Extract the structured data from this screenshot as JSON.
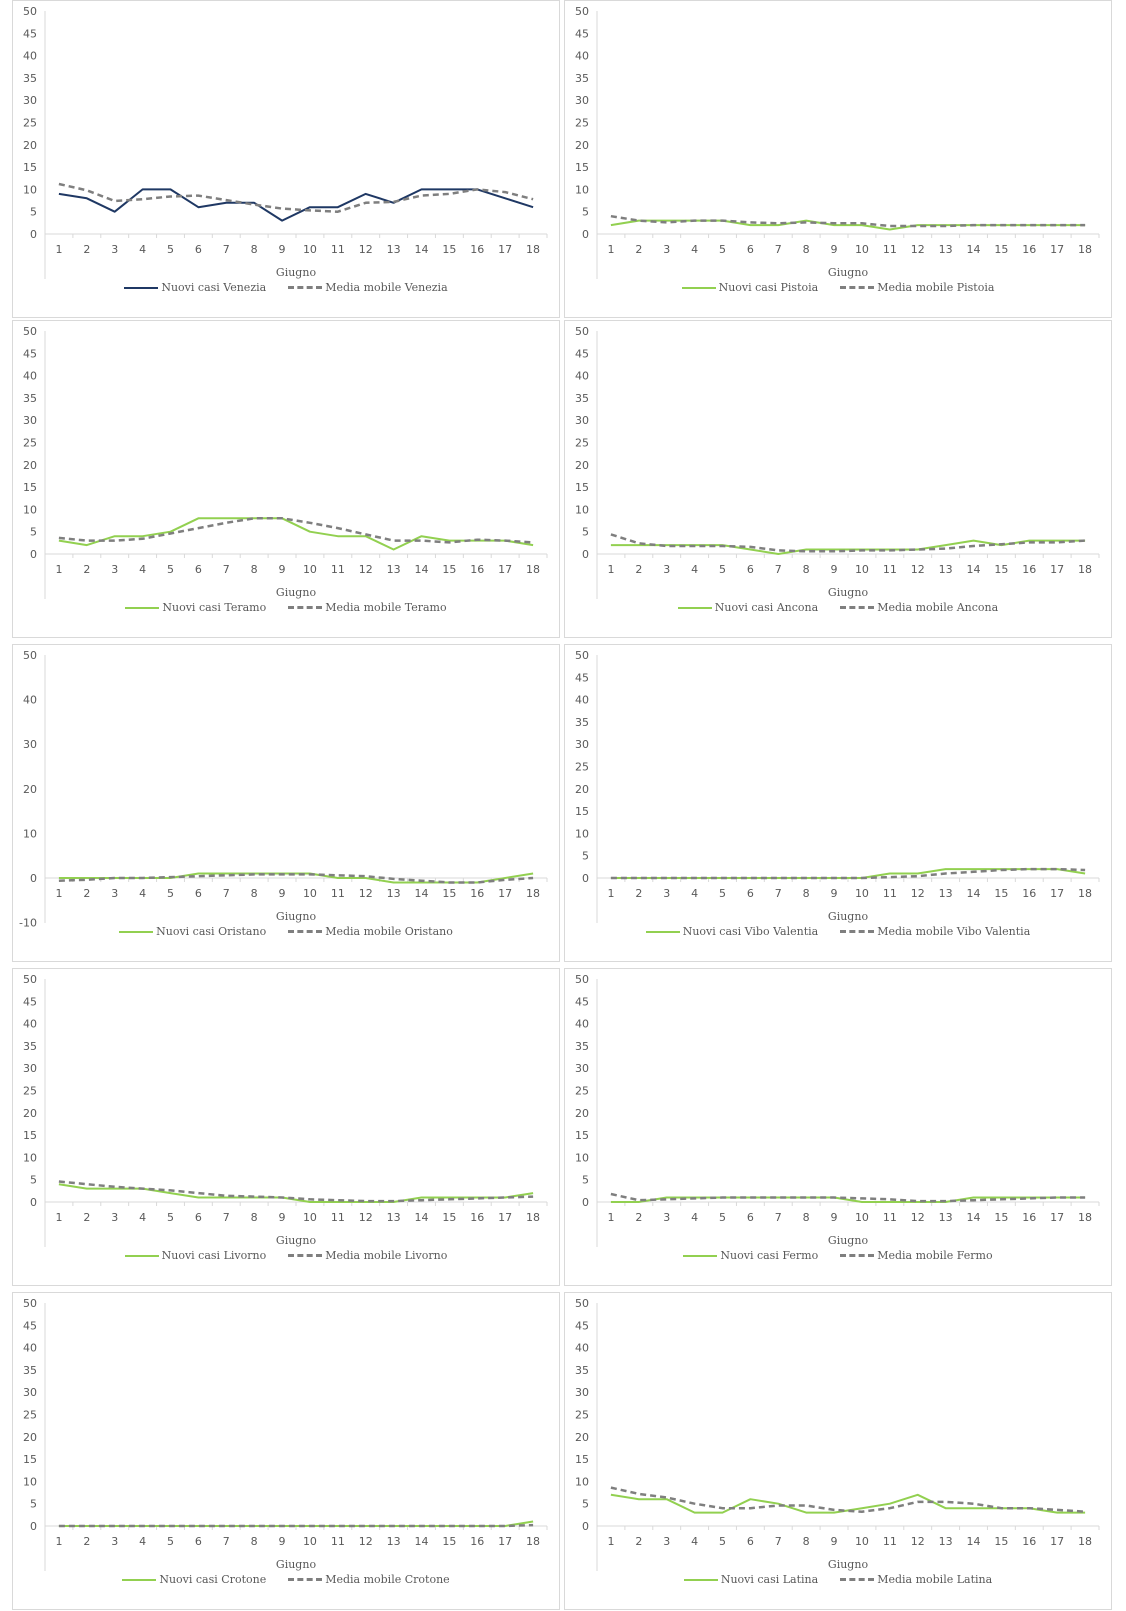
{
  "chart_data": [
    {
      "type": "line",
      "xlabel": "Giugno",
      "ylim": [
        0,
        50
      ],
      "yticks": [
        0,
        5,
        10,
        15,
        20,
        25,
        30,
        35,
        40,
        45,
        50
      ],
      "categories": [
        "1",
        "2",
        "3",
        "4",
        "5",
        "6",
        "7",
        "8",
        "9",
        "10",
        "11",
        "12",
        "13",
        "14",
        "15",
        "16",
        "17",
        "18"
      ],
      "series": [
        {
          "name": "Nuovi casi Venezia",
          "color": "#1f3864",
          "dash": false,
          "values": [
            9,
            8,
            5,
            10,
            10,
            6,
            7,
            7,
            3,
            6,
            6,
            9,
            7,
            10,
            10,
            10,
            8,
            6
          ]
        },
        {
          "name": "Media mobile Venezia",
          "color": "#7f7f7f",
          "dash": true,
          "values": [
            11.2,
            9.8,
            7.4,
            7.8,
            8.4,
            8.6,
            7.6,
            6.6,
            5.7,
            5.3,
            5.0,
            7.0,
            7.2,
            8.6,
            9.0,
            10.0,
            9.4,
            7.8
          ]
        }
      ]
    },
    {
      "type": "line",
      "xlabel": "Giugno",
      "ylim": [
        0,
        50
      ],
      "yticks": [
        0,
        5,
        10,
        15,
        20,
        25,
        30,
        35,
        40,
        45,
        50
      ],
      "categories": [
        "1",
        "2",
        "3",
        "4",
        "5",
        "6",
        "7",
        "8",
        "9",
        "10",
        "11",
        "12",
        "13",
        "14",
        "15",
        "16",
        "17",
        "18"
      ],
      "series": [
        {
          "name": "Nuovi casi Pistoia",
          "color": "#92d050",
          "dash": false,
          "values": [
            2,
            3,
            3,
            3,
            3,
            2,
            2,
            3,
            2,
            2,
            1,
            2,
            2,
            2,
            2,
            2,
            2,
            2
          ]
        },
        {
          "name": "Media mobile Pistoia",
          "color": "#7f7f7f",
          "dash": true,
          "values": [
            4,
            3,
            2.6,
            3,
            3,
            2.6,
            2.4,
            2.6,
            2.4,
            2.4,
            1.8,
            1.8,
            1.8,
            2,
            2,
            2,
            2,
            2
          ]
        }
      ]
    },
    {
      "type": "line",
      "xlabel": "Giugno",
      "ylim": [
        0,
        50
      ],
      "yticks": [
        0,
        5,
        10,
        15,
        20,
        25,
        30,
        35,
        40,
        45,
        50
      ],
      "categories": [
        "1",
        "2",
        "3",
        "4",
        "5",
        "6",
        "7",
        "8",
        "9",
        "10",
        "11",
        "12",
        "13",
        "14",
        "15",
        "16",
        "17",
        "18"
      ],
      "series": [
        {
          "name": "Nuovi casi Teramo",
          "color": "#92d050",
          "dash": false,
          "values": [
            3,
            2,
            4,
            4,
            5,
            8,
            8,
            8,
            8,
            5,
            4,
            4,
            1,
            4,
            3,
            3,
            3,
            2
          ]
        },
        {
          "name": "Media mobile Teramo",
          "color": "#7f7f7f",
          "dash": true,
          "values": [
            3.6,
            3,
            3,
            3.4,
            4.6,
            5.8,
            7,
            8,
            8,
            7,
            5.8,
            4.4,
            3,
            3,
            2.6,
            3.2,
            3,
            2.6
          ]
        }
      ]
    },
    {
      "type": "line",
      "xlabel": "Giugno",
      "ylim": [
        0,
        50
      ],
      "yticks": [
        0,
        5,
        10,
        15,
        20,
        25,
        30,
        35,
        40,
        45,
        50
      ],
      "categories": [
        "1",
        "2",
        "3",
        "4",
        "5",
        "6",
        "7",
        "8",
        "9",
        "10",
        "11",
        "12",
        "13",
        "14",
        "15",
        "16",
        "17",
        "18"
      ],
      "series": [
        {
          "name": "Nuovi casi Ancona",
          "color": "#92d050",
          "dash": false,
          "values": [
            2,
            2,
            2,
            2,
            2,
            1,
            0,
            1,
            1,
            1,
            1,
            1,
            2,
            3,
            2,
            3,
            3,
            3
          ]
        },
        {
          "name": "Media mobile Ancona",
          "color": "#7f7f7f",
          "dash": true,
          "values": [
            4.4,
            2.4,
            1.8,
            1.8,
            1.8,
            1.6,
            0.8,
            0.6,
            0.6,
            0.8,
            0.8,
            1,
            1.2,
            1.8,
            2.2,
            2.6,
            2.6,
            3
          ]
        }
      ]
    },
    {
      "type": "line",
      "xlabel": "Giugno",
      "ylim": [
        -10,
        50
      ],
      "yticks": [
        -10,
        0,
        10,
        20,
        30,
        40,
        50
      ],
      "categories": [
        "1",
        "2",
        "3",
        "4",
        "5",
        "6",
        "7",
        "8",
        "9",
        "10",
        "11",
        "12",
        "13",
        "14",
        "15",
        "16",
        "17",
        "18"
      ],
      "series": [
        {
          "name": "Nuovi casi Oristano",
          "color": "#92d050",
          "dash": false,
          "values": [
            0,
            0,
            0,
            0,
            0,
            1,
            1,
            1,
            1,
            1,
            0,
            0,
            -1,
            -1,
            -1,
            -1,
            0,
            1
          ]
        },
        {
          "name": "Media mobile Oristano",
          "color": "#7f7f7f",
          "dash": true,
          "values": [
            -0.6,
            -0.4,
            0,
            0,
            0.2,
            0.4,
            0.6,
            0.8,
            0.8,
            0.8,
            0.6,
            0.4,
            -0.2,
            -0.6,
            -1,
            -1,
            -0.4,
            0
          ]
        }
      ]
    },
    {
      "type": "line",
      "xlabel": "Giugno",
      "ylim": [
        0,
        50
      ],
      "yticks": [
        0,
        5,
        10,
        15,
        20,
        25,
        30,
        35,
        40,
        45,
        50
      ],
      "categories": [
        "1",
        "2",
        "3",
        "4",
        "5",
        "6",
        "7",
        "8",
        "9",
        "10",
        "11",
        "12",
        "13",
        "14",
        "15",
        "16",
        "17",
        "18"
      ],
      "series": [
        {
          "name": "Nuovi casi Vibo Valentia",
          "color": "#92d050",
          "dash": false,
          "values": [
            0,
            0,
            0,
            0,
            0,
            0,
            0,
            0,
            0,
            0,
            1,
            1,
            2,
            2,
            2,
            2,
            2,
            1
          ]
        },
        {
          "name": "Media mobile Vibo Valentia",
          "color": "#7f7f7f",
          "dash": true,
          "values": [
            0,
            0,
            0,
            0,
            0,
            0,
            0,
            0,
            0,
            0,
            0.2,
            0.4,
            1,
            1.4,
            1.8,
            2,
            2,
            1.8
          ]
        }
      ]
    },
    {
      "type": "line",
      "xlabel": "Giugno",
      "ylim": [
        0,
        50
      ],
      "yticks": [
        0,
        5,
        10,
        15,
        20,
        25,
        30,
        35,
        40,
        45,
        50
      ],
      "categories": [
        "1",
        "2",
        "3",
        "4",
        "5",
        "6",
        "7",
        "8",
        "9",
        "10",
        "11",
        "12",
        "13",
        "14",
        "15",
        "16",
        "17",
        "18"
      ],
      "series": [
        {
          "name": "Nuovi casi Livorno",
          "color": "#92d050",
          "dash": false,
          "values": [
            4,
            3,
            3,
            3,
            2,
            1,
            1,
            1,
            1,
            0,
            0,
            0,
            0,
            1,
            1,
            1,
            1,
            2
          ]
        },
        {
          "name": "Media mobile Livorno",
          "color": "#7f7f7f",
          "dash": true,
          "values": [
            4.6,
            4,
            3.4,
            3,
            2.6,
            2,
            1.4,
            1.2,
            1,
            0.6,
            0.4,
            0.2,
            0.2,
            0.4,
            0.6,
            0.8,
            1,
            1.2
          ]
        }
      ]
    },
    {
      "type": "line",
      "xlabel": "Giugno",
      "ylim": [
        0,
        50
      ],
      "yticks": [
        0,
        5,
        10,
        15,
        20,
        25,
        30,
        35,
        40,
        45,
        50
      ],
      "categories": [
        "1",
        "2",
        "3",
        "4",
        "5",
        "6",
        "7",
        "8",
        "9",
        "10",
        "11",
        "12",
        "13",
        "14",
        "15",
        "16",
        "17",
        "18"
      ],
      "series": [
        {
          "name": "Nuovi casi Fermo",
          "color": "#92d050",
          "dash": false,
          "values": [
            0,
            0,
            1,
            1,
            1,
            1,
            1,
            1,
            1,
            0,
            0,
            0,
            0,
            1,
            1,
            1,
            1,
            1
          ]
        },
        {
          "name": "Media mobile Fermo",
          "color": "#7f7f7f",
          "dash": true,
          "values": [
            1.8,
            0.4,
            0.6,
            0.8,
            1,
            1,
            1,
            1,
            1,
            0.8,
            0.6,
            0.2,
            0.2,
            0.4,
            0.6,
            0.8,
            1,
            1
          ]
        }
      ]
    },
    {
      "type": "line",
      "xlabel": "Giugno",
      "ylim": [
        0,
        50
      ],
      "yticks": [
        0,
        5,
        10,
        15,
        20,
        25,
        30,
        35,
        40,
        45,
        50
      ],
      "categories": [
        "1",
        "2",
        "3",
        "4",
        "5",
        "6",
        "7",
        "8",
        "9",
        "10",
        "11",
        "12",
        "13",
        "14",
        "15",
        "16",
        "17",
        "18"
      ],
      "series": [
        {
          "name": "Nuovi casi Crotone",
          "color": "#92d050",
          "dash": false,
          "values": [
            0,
            0,
            0,
            0,
            0,
            0,
            0,
            0,
            0,
            0,
            0,
            0,
            0,
            0,
            0,
            0,
            0,
            1
          ]
        },
        {
          "name": "Media mobile Crotone",
          "color": "#7f7f7f",
          "dash": true,
          "values": [
            0,
            0,
            0,
            0,
            0,
            0,
            0,
            0,
            0,
            0,
            0,
            0,
            0,
            0,
            0,
            0,
            0,
            0.2
          ]
        }
      ]
    },
    {
      "type": "line",
      "xlabel": "Giugno",
      "ylim": [
        0,
        50
      ],
      "yticks": [
        0,
        5,
        10,
        15,
        20,
        25,
        30,
        35,
        40,
        45,
        50
      ],
      "categories": [
        "1",
        "2",
        "3",
        "4",
        "5",
        "6",
        "7",
        "8",
        "9",
        "10",
        "11",
        "12",
        "13",
        "14",
        "15",
        "16",
        "17",
        "18"
      ],
      "series": [
        {
          "name": "Nuovi casi Latina",
          "color": "#92d050",
          "dash": false,
          "values": [
            7,
            6,
            6,
            3,
            3,
            6,
            5,
            3,
            3,
            4,
            5,
            7,
            4,
            4,
            4,
            4,
            3,
            3
          ]
        },
        {
          "name": "Media mobile Latina",
          "color": "#7f7f7f",
          "dash": true,
          "values": [
            8.6,
            7.2,
            6.4,
            5,
            4,
            4,
            4.6,
            4.6,
            3.6,
            3.2,
            4,
            5.4,
            5.4,
            5,
            4,
            4,
            3.6,
            3.2
          ]
        }
      ]
    }
  ]
}
